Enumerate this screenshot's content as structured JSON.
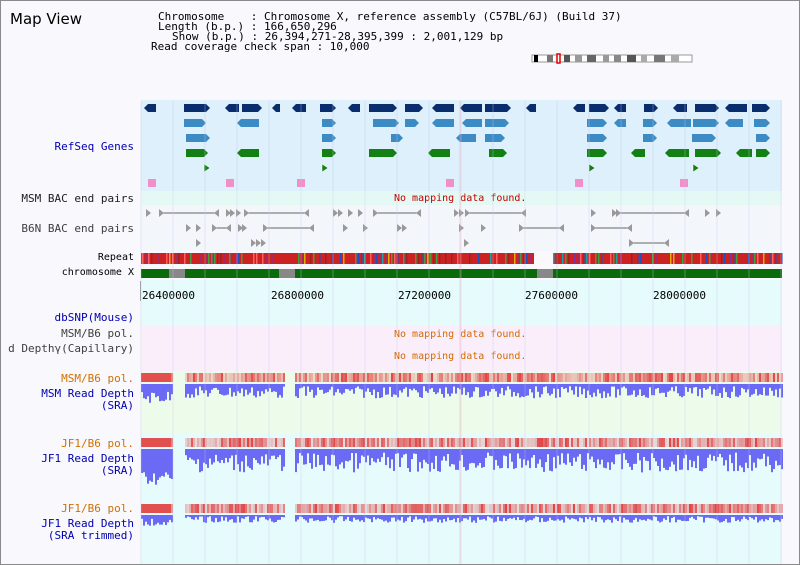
{
  "header": {
    "title": "Map View",
    "lines": [
      "Chromosome    : Chromosome X, reference assembly (C57BL/6J) (Build 37)",
      "Length (b.p.) : 166,650,296",
      "Show (b.p.) : 26,394,271-28,395,399 : 2,001,129 bp",
      "Read coverage check span : 10,000"
    ]
  },
  "tracks": {
    "refseq": "RefSeq Genes",
    "msm_bac": "MSM BAC end pairs",
    "b6n_bac": "B6N BAC end pairs",
    "repeat": "Repeat",
    "chromosome": "chromosome X",
    "dbsnp": "dbSNP(Mouse)",
    "msm_b6_pol": "MSM/B6 pol.",
    "capillary": "d Depthγ(Capillary)",
    "msm_b6_pol2": "MSM/B6 pol.",
    "msm_read_depth_1": "MSM Read Depth",
    "msm_read_depth_2": "(SRA)",
    "jf1_b6_pol": "JF1/B6 pol.",
    "jf1_read_depth_1": "JF1 Read Depth",
    "jf1_read_depth_2": "(SRA)",
    "jf1_b6_pol2": "JF1/B6 pol.",
    "jf1_trim_depth_1": "JF1 Read Depth",
    "jf1_trim_depth_2": "(SRA trimmed)"
  },
  "messages": {
    "msm_bac_none": "No mapping data found.",
    "pol_none": "No mapping data found.",
    "cap_none": "No mapping data found."
  },
  "axis": {
    "ticks": [
      "26400000",
      "26800000",
      "27200000",
      "27600000",
      "28000000"
    ]
  },
  "colors": {
    "refseq_bg": "#ddf0fb",
    "gene_dark": "#0a2d6e",
    "gene_mid": "#3d8bc4",
    "gene_green": "#138013",
    "pink": "#f08fc8",
    "chrom_green": "#0a6b0a",
    "pol_red": "#e03030",
    "depth_blue": "#6a6af5"
  }
}
